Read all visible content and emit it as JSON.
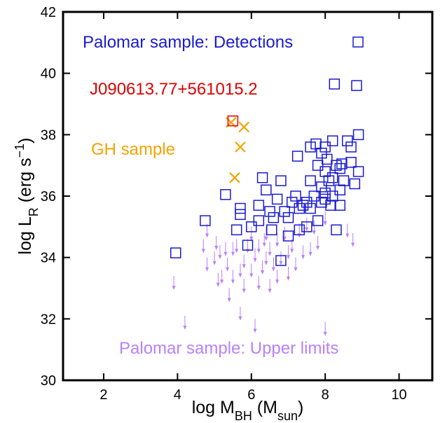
{
  "chart_data": {
    "type": "scatter",
    "xlabel": [
      {
        "text": "log M"
      },
      {
        "text": "BH",
        "shift": "sub"
      },
      {
        "text": " (M"
      },
      {
        "text": "sun",
        "shift": "sub"
      },
      {
        "text": ")"
      }
    ],
    "ylabel": [
      {
        "text": "log L"
      },
      {
        "text": "R",
        "shift": "sub"
      },
      {
        "text": " (erg s"
      },
      {
        "text": "−1",
        "shift": "super"
      },
      {
        "text": ")"
      }
    ],
    "xlim": [
      0.9,
      10.9
    ],
    "ylim": [
      30,
      42
    ],
    "xticks": [
      2,
      4,
      6,
      8,
      10
    ],
    "yticks": [
      30,
      32,
      34,
      36,
      38,
      40,
      42
    ],
    "series": [
      {
        "name": "Palomar sample: Detections",
        "color": "#1a1ad0",
        "marker": "square",
        "x": [
          3.95,
          4.75,
          5.3,
          5.7,
          5.7,
          5.9,
          5.6,
          6.2,
          6.3,
          6.2,
          6.4,
          6.5,
          6.6,
          6.7,
          6.8,
          6.8,
          6.9,
          7.0,
          7.1,
          7.2,
          7.25,
          7.3,
          7.4,
          7.5,
          7.5,
          7.6,
          7.6,
          7.7,
          7.75,
          7.8,
          7.8,
          7.9,
          7.9,
          8.0,
          8.0,
          8.0,
          8.0,
          8.05,
          8.1,
          8.15,
          8.2,
          8.2,
          8.25,
          8.3,
          8.3,
          8.4,
          8.4,
          8.4,
          8.5,
          8.6,
          8.7,
          8.7,
          8.8,
          8.9,
          8.9,
          8.85,
          8.2,
          7.0,
          7.3,
          6.0,
          6.55,
          7.9,
          8.45,
          7.6
        ],
        "values": [
          34.15,
          35.2,
          36.05,
          35.6,
          35.4,
          34.4,
          34.9,
          35.7,
          36.6,
          35.2,
          36.2,
          35.5,
          35.3,
          35.9,
          36.5,
          33.9,
          35.5,
          35.3,
          35.8,
          36.0,
          37.3,
          35.6,
          35.7,
          35.0,
          35.8,
          36.5,
          37.6,
          36.0,
          37.7,
          35.2,
          37.0,
          36.3,
          35.8,
          37.6,
          36.1,
          35.9,
          36.8,
          37.2,
          36.5,
          35.7,
          36.6,
          37.8,
          39.65,
          34.9,
          37.0,
          36.2,
          36.9,
          35.7,
          36.5,
          37.8,
          37.6,
          37.1,
          36.4,
          36.8,
          38.0,
          39.6,
          36.0,
          34.7,
          34.9,
          35.0,
          34.9,
          37.4,
          37.05,
          35.6
        ]
      },
      {
        "name": "J090613.77+561015.2",
        "color": "#e00000",
        "marker": "square",
        "x": [
          5.5
        ],
        "values": [
          38.45
        ]
      },
      {
        "name": "GH sample",
        "color": "#f5a300",
        "marker": "cross",
        "x": [
          5.45,
          5.55,
          5.7,
          5.8
        ],
        "values": [
          38.4,
          36.6,
          37.6,
          38.25
        ]
      },
      {
        "name": "Palomar sample: Upper limits",
        "color": "#b980ff",
        "marker": "arrow",
        "x": [
          3.9,
          4.2,
          4.8,
          4.7,
          5.0,
          5.1,
          5.2,
          5.3,
          5.4,
          5.5,
          5.5,
          5.6,
          5.7,
          5.7,
          5.8,
          5.8,
          5.9,
          6.0,
          6.0,
          6.1,
          6.2,
          6.2,
          6.3,
          6.4,
          6.4,
          6.5,
          6.5,
          6.6,
          6.7,
          6.7,
          6.8,
          6.9,
          7.0,
          7.0,
          7.1,
          7.2,
          7.3,
          7.4,
          7.5,
          7.6,
          7.7,
          7.8,
          8.0,
          8.6,
          8.75,
          4.8,
          5.35,
          6.1,
          8.0,
          5.05,
          5.15,
          6.35
        ],
        "values": [
          33.4,
          32.1,
          35.1,
          34.6,
          34.2,
          33.5,
          33.6,
          34.5,
          33.0,
          34.5,
          33.6,
          34.6,
          32.4,
          33.8,
          34.1,
          33.3,
          34.6,
          33.8,
          35.0,
          34.3,
          33.4,
          34.6,
          33.9,
          34.2,
          35.0,
          33.3,
          34.5,
          34.0,
          33.6,
          34.8,
          34.2,
          35.0,
          34.4,
          33.7,
          34.6,
          34.0,
          35.1,
          34.4,
          35.3,
          34.5,
          35.2,
          34.7,
          35.5,
          35.1,
          34.8,
          34.0,
          34.0,
          32.0,
          31.9,
          34.7,
          34.4,
          34.8
        ]
      }
    ]
  }
}
